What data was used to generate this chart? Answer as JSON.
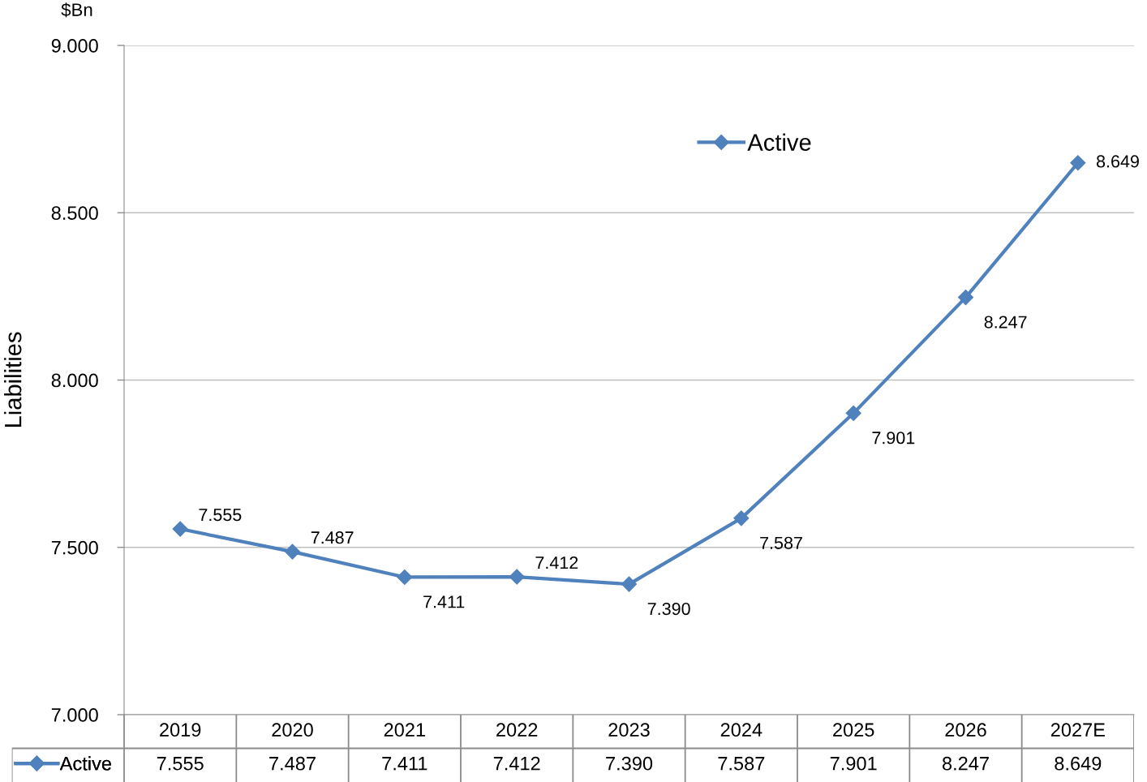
{
  "chart_data": {
    "type": "line",
    "ylabel": "Liabilities",
    "annotations": [
      "$Bn"
    ],
    "categories": [
      "2019",
      "2020",
      "2021",
      "2022",
      "2023",
      "2024",
      "2025",
      "2026",
      "2027E"
    ],
    "series": [
      {
        "name": "Active",
        "color": "#4f81bd",
        "values": [
          7.555,
          7.487,
          7.411,
          7.412,
          7.39,
          7.587,
          7.901,
          8.247,
          8.649
        ],
        "value_labels": [
          "7.555",
          "7.487",
          "7.411",
          "7.412",
          "7.390",
          "7.587",
          "7.901",
          "8.247",
          "8.649"
        ]
      }
    ],
    "ylim": [
      7,
      9
    ],
    "yticks": [
      {
        "value": 7,
        "label": "7.000"
      },
      {
        "value": 7.5,
        "label": "7.500"
      },
      {
        "value": 8,
        "label": "8.000"
      },
      {
        "value": 8.5,
        "label": "8.500"
      },
      {
        "value": 9,
        "label": "9.000"
      }
    ],
    "grid": "y",
    "legend": "top",
    "marker": "diamond",
    "line_style": "solid"
  }
}
